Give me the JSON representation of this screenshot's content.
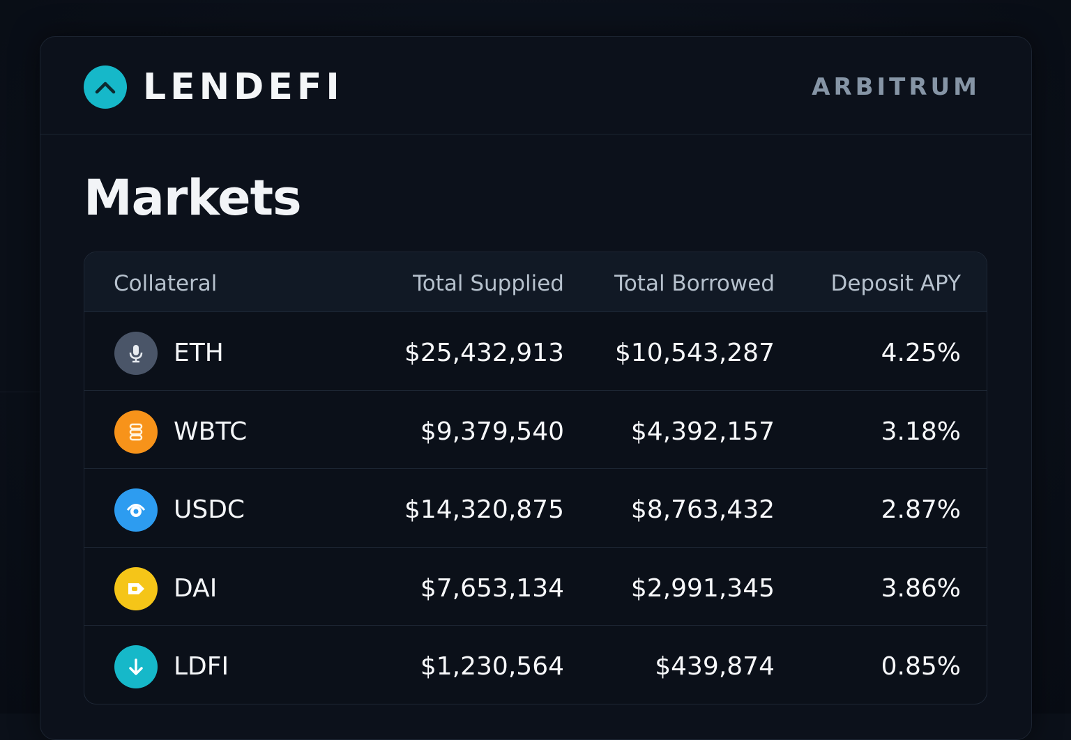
{
  "header": {
    "brand": "LENDEFI",
    "logo_icon": "chevron-up-icon",
    "network": "ARBITRUM",
    "accent_color": "#16b8c9"
  },
  "page": {
    "title": "Markets"
  },
  "table": {
    "columns": [
      "Collateral",
      "Total Supplied",
      "Total Borrowed",
      "Deposit APY"
    ],
    "rows": [
      {
        "asset": "ETH",
        "icon": "microphone-icon",
        "icon_color": "#4a5568",
        "supplied": "$25,432,913",
        "borrowed": "$10,543,287",
        "apy": "4.25%"
      },
      {
        "asset": "WBTC",
        "icon": "coin-stack-icon",
        "icon_color": "#f7931a",
        "supplied": "$9,379,540",
        "borrowed": "$4,392,157",
        "apy": "3.18%"
      },
      {
        "asset": "USDC",
        "icon": "eye-icon",
        "icon_color": "#2d9cf0",
        "supplied": "$14,320,875",
        "borrowed": "$8,763,432",
        "apy": "2.87%"
      },
      {
        "asset": "DAI",
        "icon": "tag-icon",
        "icon_color": "#f5c518",
        "supplied": "$7,653,134",
        "borrowed": "$2,991,345",
        "apy": "3.86%"
      },
      {
        "asset": "LDFI",
        "icon": "arrow-down-icon",
        "icon_color": "#16b8c9",
        "supplied": "$1,230,564",
        "borrowed": "$439,874",
        "apy": "0.85%"
      }
    ]
  }
}
